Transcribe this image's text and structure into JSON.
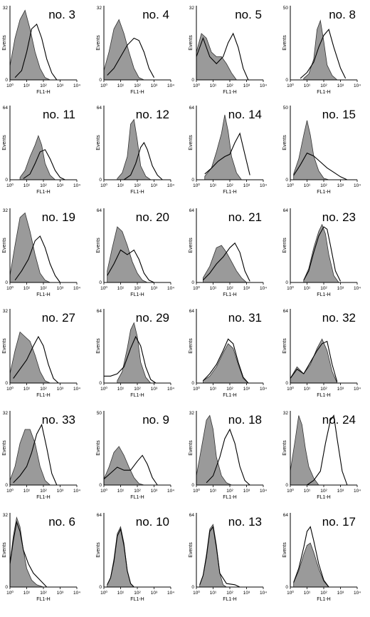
{
  "axis": {
    "xlabel": "FL1-H",
    "ylabel": "Events",
    "xticks": [
      "10⁰",
      "10¹",
      "10²",
      "10³",
      "10⁴"
    ],
    "ytick_bottom": "0"
  },
  "colors": {
    "filled": "#9a9a9a",
    "line": "#000000"
  },
  "chart_data": [
    {
      "type": "area",
      "title": "no. 3",
      "ylim": [
        0,
        32
      ],
      "xlim": [
        0,
        4
      ],
      "filled": {
        "x": [
          0,
          0.3,
          0.6,
          0.9,
          1.2,
          1.5,
          1.8,
          2.1,
          2.4
        ],
        "y": [
          6,
          18,
          26,
          30,
          22,
          12,
          5,
          1,
          0
        ]
      },
      "line": {
        "x": [
          0.3,
          0.7,
          1.0,
          1.3,
          1.6,
          1.9,
          2.2,
          2.5,
          2.8
        ],
        "y": [
          1,
          4,
          12,
          22,
          24,
          18,
          9,
          3,
          0
        ]
      }
    },
    {
      "type": "area",
      "title": "no. 4",
      "ylim": [
        0,
        32
      ],
      "xlim": [
        0,
        4
      ],
      "filled": {
        "x": [
          0,
          0.3,
          0.6,
          0.9,
          1.2,
          1.5,
          1.8,
          2.1,
          2.4
        ],
        "y": [
          4,
          12,
          22,
          26,
          20,
          12,
          5,
          1,
          0
        ]
      },
      "line": {
        "x": [
          0.2,
          0.6,
          1.0,
          1.4,
          1.8,
          2.1,
          2.4,
          2.7,
          3.0
        ],
        "y": [
          2,
          5,
          10,
          15,
          18,
          17,
          12,
          5,
          1
        ]
      }
    },
    {
      "type": "area",
      "title": "no. 5",
      "ylim": [
        0,
        32
      ],
      "xlim": [
        0,
        4
      ],
      "filled": {
        "x": [
          0,
          0.3,
          0.6,
          0.9,
          1.2,
          1.5,
          1.8,
          2.1,
          2.4
        ],
        "y": [
          12,
          20,
          18,
          12,
          10,
          10,
          7,
          3,
          0
        ]
      },
      "line": {
        "x": [
          0,
          0.4,
          0.8,
          1.2,
          1.6,
          1.9,
          2.2,
          2.5,
          2.8,
          3.1
        ],
        "y": [
          10,
          18,
          10,
          7,
          10,
          16,
          20,
          14,
          5,
          0
        ]
      }
    },
    {
      "type": "area",
      "title": "no. 8",
      "ylim": [
        0,
        50
      ],
      "xlim": [
        0,
        4
      ],
      "filled": {
        "x": [
          0.8,
          1.1,
          1.4,
          1.6,
          1.8,
          2.0,
          2.2,
          2.5,
          2.8
        ],
        "y": [
          1,
          4,
          14,
          34,
          40,
          26,
          10,
          3,
          0
        ]
      },
      "line": {
        "x": [
          0.6,
          1.0,
          1.4,
          1.7,
          2.0,
          2.3,
          2.6,
          3.0,
          3.3
        ],
        "y": [
          1,
          5,
          12,
          22,
          30,
          34,
          22,
          8,
          1
        ]
      }
    },
    {
      "type": "area",
      "title": "no. 11",
      "ylim": [
        0,
        64
      ],
      "xlim": [
        0,
        4
      ],
      "filled": {
        "x": [
          0.6,
          0.9,
          1.2,
          1.5,
          1.7,
          1.9,
          2.1,
          2.4,
          2.7
        ],
        "y": [
          2,
          8,
          20,
          30,
          38,
          30,
          14,
          4,
          0
        ]
      },
      "line": {
        "x": [
          0.8,
          1.2,
          1.5,
          1.8,
          2.1,
          2.4,
          2.7,
          3.0,
          3.3
        ],
        "y": [
          1,
          5,
          14,
          24,
          26,
          18,
          8,
          2,
          0
        ]
      }
    },
    {
      "type": "area",
      "title": "no. 12",
      "ylim": [
        0,
        64
      ],
      "xlim": [
        0,
        4
      ],
      "filled": {
        "x": [
          0.8,
          1.1,
          1.4,
          1.6,
          1.8,
          2.0,
          2.2,
          2.5,
          2.8
        ],
        "y": [
          1,
          6,
          20,
          48,
          52,
          34,
          12,
          3,
          0
        ]
      },
      "line": {
        "x": [
          1.2,
          1.6,
          1.9,
          2.2,
          2.4,
          2.6,
          2.9,
          3.2,
          3.5
        ],
        "y": [
          0,
          4,
          14,
          28,
          32,
          26,
          12,
          4,
          0
        ]
      }
    },
    {
      "type": "area",
      "title": "no. 14",
      "ylim": [
        0,
        64
      ],
      "xlim": [
        0,
        4
      ],
      "filled": {
        "x": [
          0.5,
          0.9,
          1.2,
          1.5,
          1.7,
          1.9,
          2.1,
          2.4,
          2.7
        ],
        "y": [
          3,
          10,
          24,
          40,
          56,
          42,
          20,
          6,
          0
        ]
      },
      "line": {
        "x": [
          0.5,
          0.9,
          1.3,
          1.7,
          2.0,
          2.3,
          2.6,
          2.9,
          3.2
        ],
        "y": [
          5,
          10,
          16,
          20,
          22,
          32,
          40,
          22,
          4
        ]
      }
    },
    {
      "type": "area",
      "title": "no. 15",
      "ylim": [
        0,
        50
      ],
      "xlim": [
        0,
        4
      ],
      "filled": {
        "x": [
          0.2,
          0.5,
          0.8,
          1.0,
          1.2,
          1.4,
          1.7,
          2.0,
          2.3
        ],
        "y": [
          4,
          14,
          30,
          40,
          30,
          16,
          6,
          1,
          0
        ]
      },
      "line": {
        "x": [
          0.2,
          0.6,
          1.0,
          1.4,
          1.8,
          2.2,
          2.6,
          3.0,
          3.4
        ],
        "y": [
          3,
          10,
          18,
          16,
          12,
          8,
          5,
          2,
          0
        ]
      }
    },
    {
      "type": "area",
      "title": "no. 19",
      "ylim": [
        0,
        32
      ],
      "xlim": [
        0,
        4
      ],
      "filled": {
        "x": [
          0,
          0.3,
          0.6,
          0.9,
          1.2,
          1.5,
          1.8,
          2.1,
          2.4
        ],
        "y": [
          3,
          16,
          28,
          30,
          22,
          12,
          4,
          1,
          0
        ]
      },
      "line": {
        "x": [
          0.3,
          0.7,
          1.1,
          1.5,
          1.8,
          2.1,
          2.4,
          2.7,
          3.0
        ],
        "y": [
          1,
          5,
          10,
          18,
          20,
          15,
          8,
          3,
          0
        ]
      }
    },
    {
      "type": "area",
      "title": "no. 20",
      "ylim": [
        0,
        64
      ],
      "xlim": [
        0,
        4
      ],
      "filled": {
        "x": [
          0.2,
          0.5,
          0.8,
          1.1,
          1.4,
          1.7,
          2.0,
          2.3,
          2.6
        ],
        "y": [
          10,
          30,
          48,
          44,
          32,
          18,
          8,
          2,
          0
        ]
      },
      "line": {
        "x": [
          0.2,
          0.6,
          1.0,
          1.4,
          1.8,
          2.1,
          2.4,
          2.7,
          3.0
        ],
        "y": [
          6,
          16,
          28,
          24,
          28,
          20,
          8,
          2,
          0
        ]
      }
    },
    {
      "type": "area",
      "title": "no. 21",
      "ylim": [
        0,
        64
      ],
      "xlim": [
        0,
        4
      ],
      "filled": {
        "x": [
          0.4,
          0.8,
          1.2,
          1.5,
          1.8,
          2.1,
          2.4,
          2.7,
          3.0
        ],
        "y": [
          4,
          14,
          30,
          32,
          26,
          18,
          10,
          4,
          0
        ]
      },
      "line": {
        "x": [
          0.4,
          0.8,
          1.2,
          1.6,
          2.0,
          2.3,
          2.6,
          2.9,
          3.2
        ],
        "y": [
          2,
          8,
          16,
          22,
          30,
          34,
          26,
          10,
          1
        ]
      }
    },
    {
      "type": "area",
      "title": "no. 23",
      "ylim": [
        0,
        64
      ],
      "xlim": [
        0,
        4
      ],
      "filled": {
        "x": [
          0.8,
          1.1,
          1.4,
          1.7,
          1.9,
          2.1,
          2.3,
          2.6,
          2.9
        ],
        "y": [
          2,
          12,
          30,
          44,
          50,
          42,
          24,
          6,
          0
        ]
      },
      "line": {
        "x": [
          0.8,
          1.1,
          1.4,
          1.7,
          2.0,
          2.2,
          2.4,
          2.7,
          3.0
        ],
        "y": [
          2,
          10,
          26,
          40,
          48,
          46,
          32,
          10,
          1
        ]
      }
    },
    {
      "type": "area",
      "title": "no. 27",
      "ylim": [
        0,
        32
      ],
      "xlim": [
        0,
        4
      ],
      "filled": {
        "x": [
          0,
          0.3,
          0.6,
          0.9,
          1.2,
          1.5,
          1.8,
          2.1,
          2.4
        ],
        "y": [
          4,
          14,
          22,
          20,
          18,
          12,
          5,
          1,
          0
        ]
      },
      "line": {
        "x": [
          0.2,
          0.6,
          1.0,
          1.4,
          1.7,
          2.0,
          2.3,
          2.6,
          2.9
        ],
        "y": [
          2,
          6,
          10,
          16,
          20,
          16,
          8,
          2,
          0
        ]
      }
    },
    {
      "type": "area",
      "title": "no. 29",
      "ylim": [
        0,
        64
      ],
      "xlim": [
        0,
        4
      ],
      "filled": {
        "x": [
          0.8,
          1.1,
          1.4,
          1.6,
          1.8,
          2.0,
          2.2,
          2.5,
          2.8
        ],
        "y": [
          2,
          10,
          30,
          46,
          52,
          40,
          18,
          5,
          0
        ]
      },
      "line": {
        "x": [
          0,
          0.4,
          0.8,
          1.2,
          1.6,
          1.9,
          2.2,
          2.5,
          2.8,
          3.1
        ],
        "y": [
          6,
          6,
          8,
          14,
          30,
          40,
          32,
          14,
          3,
          0
        ]
      }
    },
    {
      "type": "area",
      "title": "no. 31",
      "ylim": [
        0,
        64
      ],
      "xlim": [
        0,
        4
      ],
      "filled": {
        "x": [
          0.4,
          0.8,
          1.2,
          1.6,
          1.9,
          2.2,
          2.5,
          2.8,
          3.1
        ],
        "y": [
          2,
          6,
          14,
          26,
          34,
          30,
          16,
          4,
          0
        ]
      },
      "line": {
        "x": [
          0.4,
          0.8,
          1.2,
          1.6,
          1.9,
          2.2,
          2.5,
          2.8,
          3.1
        ],
        "y": [
          2,
          8,
          16,
          28,
          38,
          34,
          18,
          5,
          0
        ]
      }
    },
    {
      "type": "area",
      "title": "no. 32",
      "ylim": [
        0,
        64
      ],
      "xlim": [
        0,
        4
      ],
      "filled": {
        "x": [
          0,
          0.4,
          0.8,
          1.2,
          1.6,
          1.9,
          2.2,
          2.5,
          2.8
        ],
        "y": [
          4,
          14,
          8,
          16,
          30,
          38,
          28,
          10,
          0
        ]
      },
      "line": {
        "x": [
          0,
          0.4,
          0.8,
          1.2,
          1.6,
          1.9,
          2.2,
          2.5,
          2.8
        ],
        "y": [
          4,
          12,
          8,
          18,
          28,
          34,
          36,
          16,
          1
        ]
      }
    },
    {
      "type": "area",
      "title": "no. 33",
      "ylim": [
        0,
        32
      ],
      "xlim": [
        0,
        4
      ],
      "filled": {
        "x": [
          0,
          0.3,
          0.6,
          0.9,
          1.2,
          1.5,
          1.8,
          2.1,
          2.4
        ],
        "y": [
          2,
          8,
          18,
          24,
          24,
          18,
          8,
          2,
          0
        ]
      },
      "line": {
        "x": [
          0.2,
          0.6,
          1.0,
          1.3,
          1.6,
          1.9,
          2.2,
          2.5,
          2.8
        ],
        "y": [
          1,
          4,
          8,
          14,
          22,
          26,
          16,
          5,
          0
        ]
      }
    },
    {
      "type": "area",
      "title": "no. 9",
      "ylim": [
        0,
        50
      ],
      "xlim": [
        0,
        4
      ],
      "filled": {
        "x": [
          0,
          0.3,
          0.6,
          0.9,
          1.2,
          1.5,
          1.8,
          2.1,
          2.4
        ],
        "y": [
          4,
          12,
          22,
          26,
          20,
          12,
          5,
          1,
          0
        ]
      },
      "line": {
        "x": [
          0,
          0.4,
          0.8,
          1.2,
          1.6,
          2.0,
          2.3,
          2.6,
          2.9,
          3.2
        ],
        "y": [
          4,
          8,
          12,
          10,
          10,
          16,
          20,
          14,
          5,
          0
        ]
      }
    },
    {
      "type": "area",
      "title": "no. 18",
      "ylim": [
        0,
        32
      ],
      "xlim": [
        0,
        4
      ],
      "filled": {
        "x": [
          0,
          0.3,
          0.6,
          0.8,
          1.0,
          1.2,
          1.5,
          1.8,
          2.1
        ],
        "y": [
          4,
          16,
          28,
          30,
          24,
          12,
          4,
          1,
          0
        ]
      },
      "line": {
        "x": [
          0.6,
          1.0,
          1.4,
          1.7,
          2.0,
          2.3,
          2.6,
          2.9,
          3.2
        ],
        "y": [
          1,
          4,
          12,
          20,
          24,
          18,
          8,
          2,
          0
        ]
      }
    },
    {
      "type": "area",
      "title": "no. 24",
      "ylim": [
        0,
        32
      ],
      "xlim": [
        0,
        4
      ],
      "filled": {
        "x": [
          0,
          0.3,
          0.5,
          0.7,
          0.9,
          1.1,
          1.4,
          1.7,
          2.0
        ],
        "y": [
          6,
          20,
          30,
          26,
          16,
          8,
          3,
          0,
          0
        ]
      },
      "line": {
        "x": [
          1.0,
          1.4,
          1.8,
          2.1,
          2.4,
          2.6,
          2.8,
          3.1,
          3.4
        ],
        "y": [
          0,
          2,
          6,
          18,
          28,
          30,
          20,
          6,
          0
        ]
      }
    },
    {
      "type": "area",
      "title": "no. 6",
      "ylim": [
        0,
        32
      ],
      "xlim": [
        0,
        4
      ],
      "filled": {
        "x": [
          0,
          0.2,
          0.4,
          0.6,
          0.8,
          1.0,
          1.3,
          1.6,
          2.0
        ],
        "y": [
          10,
          22,
          30,
          26,
          16,
          8,
          3,
          1,
          0
        ]
      },
      "line": {
        "x": [
          0,
          0.2,
          0.4,
          0.6,
          0.8,
          1.1,
          1.4,
          1.8,
          2.2
        ],
        "y": [
          10,
          20,
          28,
          24,
          16,
          10,
          6,
          3,
          0
        ]
      }
    },
    {
      "type": "area",
      "title": "no. 10",
      "ylim": [
        0,
        64
      ],
      "xlim": [
        0,
        4
      ],
      "filled": {
        "x": [
          0.2,
          0.4,
          0.6,
          0.8,
          1.0,
          1.2,
          1.4,
          1.6,
          1.8
        ],
        "y": [
          2,
          8,
          24,
          46,
          52,
          38,
          14,
          3,
          0
        ]
      },
      "line": {
        "x": [
          0.2,
          0.4,
          0.6,
          0.8,
          1.0,
          1.2,
          1.4,
          1.6,
          1.8
        ],
        "y": [
          2,
          8,
          22,
          44,
          50,
          36,
          14,
          3,
          0
        ]
      }
    },
    {
      "type": "area",
      "title": "no. 13",
      "ylim": [
        0,
        64
      ],
      "xlim": [
        0,
        4
      ],
      "filled": {
        "x": [
          0.2,
          0.4,
          0.6,
          0.8,
          1.0,
          1.2,
          1.4,
          1.6,
          1.8
        ],
        "y": [
          2,
          10,
          28,
          50,
          54,
          36,
          12,
          2,
          0
        ]
      },
      "line": {
        "x": [
          0.2,
          0.4,
          0.6,
          0.8,
          1.0,
          1.2,
          1.4,
          1.8,
          2.3,
          2.6
        ],
        "y": [
          2,
          10,
          26,
          48,
          52,
          34,
          12,
          3,
          2,
          0
        ]
      }
    },
    {
      "type": "area",
      "title": "no. 17",
      "ylim": [
        0,
        64
      ],
      "xlim": [
        0,
        4
      ],
      "filled": {
        "x": [
          0.2,
          0.5,
          0.8,
          1.0,
          1.2,
          1.4,
          1.7,
          2.0,
          2.3
        ],
        "y": [
          4,
          14,
          28,
          36,
          38,
          30,
          16,
          5,
          0
        ]
      },
      "line": {
        "x": [
          0.2,
          0.5,
          0.8,
          1.0,
          1.2,
          1.4,
          1.7,
          2.0,
          2.3
        ],
        "y": [
          4,
          16,
          34,
          48,
          52,
          40,
          20,
          6,
          0
        ]
      }
    }
  ]
}
